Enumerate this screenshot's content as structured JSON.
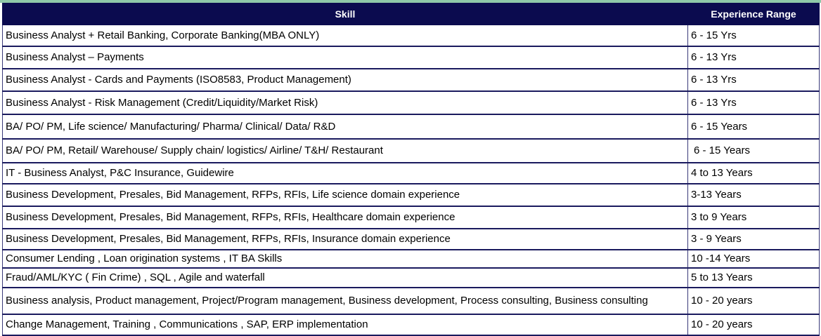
{
  "header": {
    "skill": "Skill",
    "experience": "Experience Range"
  },
  "rows": [
    {
      "skill": "Business Analyst + Retail Banking, Corporate Banking(MBA ONLY)",
      "experience": "6 - 15 Yrs"
    },
    {
      "skill": "Business Analyst – Payments",
      "experience": "6 - 13 Yrs"
    },
    {
      "skill": "Business Analyst - Cards and Payments (ISO8583, Product Management)",
      "experience": "6 - 13 Yrs"
    },
    {
      "skill": "Business Analyst - Risk Management (Credit/Liquidity/Market Risk)",
      "experience": "6 - 13 Yrs"
    },
    {
      "skill": "BA/ PO/ PM, Life science/ Manufacturing/ Pharma/ Clinical/ Data/ R&D",
      "experience": "6 - 15 Years"
    },
    {
      "skill": "BA/ PO/ PM, Retail/ Warehouse/ Supply chain/ logistics/ Airline/ T&H/ Restaurant",
      "experience": "6 - 15 Years"
    },
    {
      "skill": "IT - Business Analyst, P&C Insurance, Guidewire",
      "experience": "4 to 13 Years"
    },
    {
      "skill": "Business Development, Presales, Bid Management, RFPs, RFIs, Life science domain experience",
      "experience": "3-13 Years"
    },
    {
      "skill": "Business Development, Presales, Bid Management, RFPs, RFIs, Healthcare domain experience",
      "experience": "3 to 9 Years"
    },
    {
      "skill": "Business Development, Presales, Bid Management, RFPs, RFIs, Insurance domain experience",
      "experience": "3 - 9 Years"
    },
    {
      "skill": "Consumer Lending , Loan origination systems , IT BA Skills",
      "experience": "10 -14 Years"
    },
    {
      "skill": "Fraud/AML/KYC ( Fin Crime) , SQL , Agile and waterfall",
      "experience": "5 to 13 Years"
    },
    {
      "skill": "Business analysis, Product management, Project/Program management, Business development, Process consulting, Business consulting",
      "experience": "10 - 20 years"
    },
    {
      "skill": "Change Management, Training , Communications , SAP, ERP implementation",
      "experience": "10 - 20 years"
    }
  ],
  "colors": {
    "header_bg": "#0b0b4f",
    "header_text": "#ffffff",
    "top_strip": "#8fc9a9"
  }
}
